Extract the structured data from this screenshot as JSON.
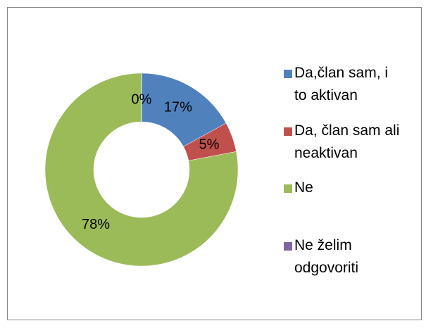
{
  "chart_data": {
    "type": "donut",
    "categories": [
      "Da,član sam, i to aktivan",
      "Da, član sam ali neaktivan",
      "Ne",
      "Ne želim odgovoriti"
    ],
    "values": [
      17,
      5,
      78,
      0
    ],
    "value_labels": [
      "17%",
      "5%",
      "78%",
      "0%"
    ],
    "colors": [
      "#4f81bd",
      "#c0504d",
      "#9bbb59",
      "#8064a2"
    ],
    "legend": "right"
  }
}
